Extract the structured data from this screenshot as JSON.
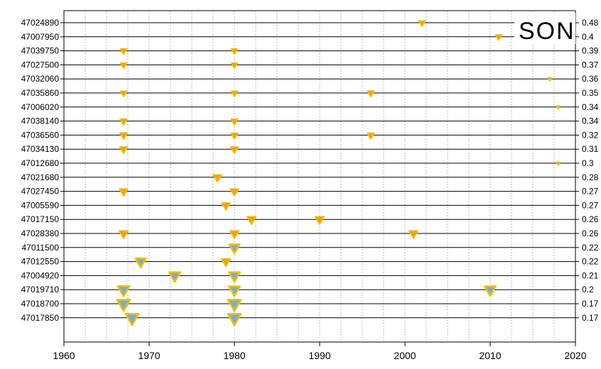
{
  "chart_data": {
    "type": "scatter",
    "title": "SON",
    "xlim": [
      1960,
      2020
    ],
    "x_ticks": [
      1960,
      1970,
      1980,
      1990,
      2000,
      2010,
      2020
    ],
    "grid": {
      "vertical_minor_every": 2.5,
      "vertical_major_every": 10,
      "horizontal_lines": true
    },
    "colors": {
      "triangle_fill_small": "#f0a020",
      "triangle_fill_large": "#7aaed0",
      "triangle_edge": "#f2c000",
      "line": "#000000",
      "grid": "#bbbbbb"
    },
    "stations": [
      {
        "id": "47024890",
        "right_label": "0.48",
        "points": [
          {
            "x": 2002,
            "size": 0.1
          }
        ]
      },
      {
        "id": "47007950",
        "right_label": "0.4",
        "points": [
          {
            "x": 2011,
            "size": 0.1
          }
        ]
      },
      {
        "id": "47039750",
        "right_label": "0.39",
        "points": [
          {
            "x": 1967,
            "size": 0.1
          },
          {
            "x": 1980,
            "size": 0.1
          }
        ]
      },
      {
        "id": "47027500",
        "right_label": "0.37",
        "points": [
          {
            "x": 1967,
            "size": 0.1
          },
          {
            "x": 1980,
            "size": 0.1
          }
        ]
      },
      {
        "id": "47032060",
        "right_label": "0.36",
        "points": [
          {
            "x": 2017,
            "size": 0.02
          }
        ]
      },
      {
        "id": "47035860",
        "right_label": "0.35",
        "points": [
          {
            "x": 1967,
            "size": 0.1
          },
          {
            "x": 1980,
            "size": 0.1
          },
          {
            "x": 1996,
            "size": 0.12
          }
        ]
      },
      {
        "id": "47006020",
        "right_label": "0.34",
        "points": [
          {
            "x": 2018,
            "size": 0.02
          }
        ]
      },
      {
        "id": "47038140",
        "right_label": "0.34",
        "points": [
          {
            "x": 1967,
            "size": 0.12
          },
          {
            "x": 1980,
            "size": 0.12
          }
        ]
      },
      {
        "id": "47036560",
        "right_label": "0.32",
        "points": [
          {
            "x": 1967,
            "size": 0.14
          },
          {
            "x": 1980,
            "size": 0.12
          },
          {
            "x": 1996,
            "size": 0.12
          }
        ]
      },
      {
        "id": "47034130",
        "right_label": "0.31",
        "points": [
          {
            "x": 1967,
            "size": 0.14
          },
          {
            "x": 1980,
            "size": 0.14
          }
        ]
      },
      {
        "id": "47012680",
        "right_label": "0.3",
        "points": [
          {
            "x": 2018,
            "size": 0.02
          }
        ]
      },
      {
        "id": "47021680",
        "right_label": "0.28",
        "points": [
          {
            "x": 1978,
            "size": 0.16
          }
        ]
      },
      {
        "id": "47027450",
        "right_label": "0.27",
        "points": [
          {
            "x": 1967,
            "size": 0.16
          },
          {
            "x": 1980,
            "size": 0.16
          }
        ]
      },
      {
        "id": "47005590",
        "right_label": "0.27",
        "points": [
          {
            "x": 1979,
            "size": 0.16
          }
        ]
      },
      {
        "id": "47017150",
        "right_label": "0.26",
        "points": [
          {
            "x": 1982,
            "size": 0.18
          },
          {
            "x": 1990,
            "size": 0.18
          }
        ]
      },
      {
        "id": "47028380",
        "right_label": "0.26",
        "points": [
          {
            "x": 1967,
            "size": 0.18
          },
          {
            "x": 1980,
            "size": 0.18
          },
          {
            "x": 2001,
            "size": 0.18
          }
        ]
      },
      {
        "id": "47011500",
        "right_label": "0.22",
        "points": [
          {
            "x": 1980,
            "size": 0.22
          }
        ]
      },
      {
        "id": "47012550",
        "right_label": "0.22",
        "points": [
          {
            "x": 1969,
            "size": 0.22
          },
          {
            "x": 1979,
            "size": 0.18
          }
        ]
      },
      {
        "id": "47004920",
        "right_label": "0.21",
        "points": [
          {
            "x": 1973,
            "size": 0.24
          },
          {
            "x": 1980,
            "size": 0.24
          }
        ]
      },
      {
        "id": "47019710",
        "right_label": "0.2",
        "points": [
          {
            "x": 1967,
            "size": 0.26
          },
          {
            "x": 1980,
            "size": 0.24
          },
          {
            "x": 2010,
            "size": 0.24
          }
        ]
      },
      {
        "id": "47018700",
        "right_label": "0.17",
        "points": [
          {
            "x": 1967,
            "size": 0.3
          },
          {
            "x": 1980,
            "size": 0.3
          }
        ]
      },
      {
        "id": "47017850",
        "right_label": "0.17",
        "points": [
          {
            "x": 1968,
            "size": 0.3
          },
          {
            "x": 1980,
            "size": 0.3
          }
        ]
      }
    ]
  }
}
